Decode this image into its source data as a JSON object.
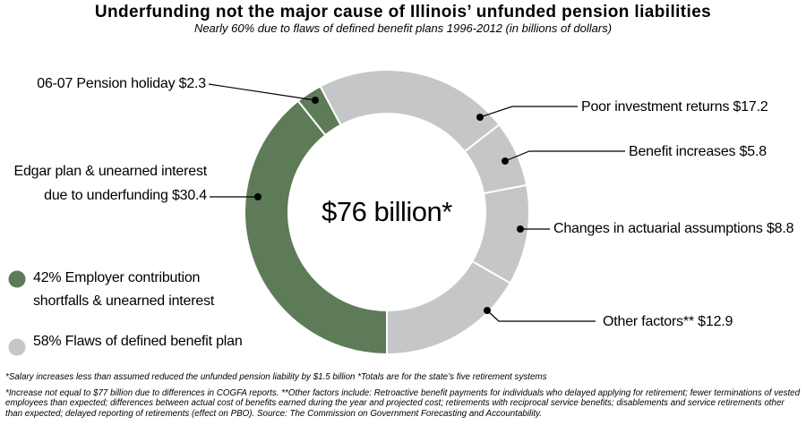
{
  "colors": {
    "green": "#5e7b57",
    "gray": "#c5c6c8",
    "line": "#000000"
  },
  "chart_data": {
    "type": "pie",
    "variant": "donut",
    "title": "Underfunding not the major cause of Illinois’ unfunded pension liabilities",
    "subtitle": "Nearly 60% due to flaws of defined benefit plans 1996-2012 (in billions of dollars)",
    "center_label": "$76 billion*",
    "units": "billions of dollars",
    "total_displayed": 76,
    "slices": [
      {
        "id": "edgar-plan",
        "label": "Edgar plan & unearned interest due to underfunding",
        "value": 30.4,
        "color": "green",
        "display": "Edgar plan & unearned interest\ndue to underfunding $30.4"
      },
      {
        "id": "pension-holiday",
        "label": "06-07 Pension holiday",
        "value": 2.3,
        "color": "green",
        "display": "06-07 Pension holiday $2.3"
      },
      {
        "id": "poor-investment-returns",
        "label": "Poor investment returns",
        "value": 17.2,
        "color": "gray",
        "display": "Poor investment returns $17.2"
      },
      {
        "id": "benefit-increases",
        "label": "Benefit increases",
        "value": 5.8,
        "color": "gray",
        "display": "Benefit increases $5.8"
      },
      {
        "id": "actuarial-assumptions",
        "label": "Changes in actuarial assumptions",
        "value": 8.8,
        "color": "gray",
        "display": "Changes in actuarial assumptions $8.8"
      },
      {
        "id": "other-factors",
        "label": "Other factors**",
        "value": 12.9,
        "color": "gray",
        "display": "Other factors** $12.9"
      }
    ],
    "groups": [
      {
        "percent": 42,
        "color": "green",
        "label": "42% Employer contribution\nshortfalls & unearned interest"
      },
      {
        "percent": 58,
        "color": "gray",
        "label": "58% Flaws of defined benefit plan"
      }
    ],
    "legend_position": "bottom-left"
  },
  "footnotes": {
    "line1": "*Salary increases less than assumed reduced the unfunded pension liability by $1.5 billion *Totals are for the state’s five retirement systems",
    "paragraph": "*Increase not equal to $77 billion due to differences in COGFA reports. **Other factors include: Retroactive benefit payments for individuals who delayed applying for retirement; fewer terminations of vested employees than expected; differences between actual cost of benefits earned during the year and projected cost; retirements with reciprocal service benefits; disablements and service retirements other than expected; delayed reporting of retirements (effect on PBO). Source: The Commission on Government Forecasting and Accountability."
  }
}
